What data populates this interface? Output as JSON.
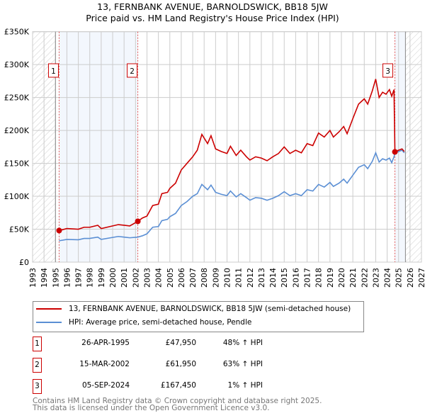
{
  "chart_data": {
    "type": "line",
    "title": "13, FERNBANK AVENUE, BARNOLDSWICK, BB18 5JW",
    "subtitle": "Price paid vs. HM Land Registry's House Price Index (HPI)",
    "xlim": [
      1993,
      2027
    ],
    "ylim": [
      0,
      350000
    ],
    "x_ticks": [
      "1993",
      "1994",
      "1995",
      "1996",
      "1997",
      "1998",
      "1999",
      "2000",
      "2001",
      "2002",
      "2003",
      "2004",
      "2005",
      "2006",
      "2007",
      "2008",
      "2009",
      "2010",
      "2011",
      "2012",
      "2013",
      "2014",
      "2015",
      "2016",
      "2017",
      "2018",
      "2019",
      "2020",
      "2021",
      "2022",
      "2023",
      "2024",
      "2025",
      "2026",
      "2027"
    ],
    "y_ticks": [
      {
        "v": 0,
        "label": "£0"
      },
      {
        "v": 50000,
        "label": "£50K"
      },
      {
        "v": 100000,
        "label": "£100K"
      },
      {
        "v": 150000,
        "label": "£150K"
      },
      {
        "v": 200000,
        "label": "£200K"
      },
      {
        "v": 250000,
        "label": "£250K"
      },
      {
        "v": 300000,
        "label": "£300K"
      },
      {
        "v": 350000,
        "label": "£350K"
      }
    ],
    "grid": true,
    "hatched_ranges": [
      [
        1993,
        1995
      ],
      [
        2025.6,
        2027
      ]
    ],
    "shaded_ranges": [
      [
        1995.32,
        2002.2
      ],
      [
        2024.68,
        2025.6
      ]
    ],
    "series": [
      {
        "name": "13, FERNBANK AVENUE, BARNOLDSWICK, BB18 5JW (semi-detached house)",
        "color": "#cc0000",
        "x": [
          1995.32,
          1996,
          1997,
          1997.5,
          1998,
          1998.7,
          1999,
          2000,
          2000.5,
          2001,
          2001.5,
          2002.2,
          2002.6,
          2003,
          2003.5,
          2004,
          2004.3,
          2004.8,
          2005,
          2005.5,
          2006,
          2006.5,
          2007,
          2007.4,
          2007.8,
          2008.3,
          2008.6,
          2009,
          2009.5,
          2010,
          2010.3,
          2010.8,
          2011.2,
          2011.7,
          2012,
          2012.5,
          2013,
          2013.5,
          2014,
          2014.5,
          2015,
          2015.5,
          2016,
          2016.5,
          2017,
          2017.5,
          2018,
          2018.5,
          2019,
          2019.3,
          2019.8,
          2020.2,
          2020.5,
          2021,
          2021.5,
          2022,
          2022.3,
          2022.7,
          2023,
          2023.3,
          2023.6,
          2023.9,
          2024.2,
          2024.4,
          2024.6,
          2024.68,
          2025,
          2025.3,
          2025.5
        ],
        "y": [
          47950,
          51000,
          50000,
          53000,
          53000,
          56000,
          51000,
          55000,
          57000,
          56000,
          55000,
          61950,
          67000,
          70000,
          86000,
          88000,
          104000,
          106000,
          112000,
          120000,
          140000,
          150000,
          160000,
          170000,
          194000,
          180000,
          192000,
          172000,
          168000,
          165000,
          176000,
          162000,
          170000,
          160000,
          155000,
          160000,
          158000,
          154000,
          160000,
          165000,
          175000,
          165000,
          170000,
          166000,
          180000,
          177000,
          196000,
          190000,
          200000,
          190000,
          198000,
          206000,
          195000,
          218000,
          240000,
          248000,
          240000,
          260000,
          278000,
          250000,
          258000,
          255000,
          262000,
          252000,
          262000,
          167450,
          170000,
          172000,
          168000
        ]
      },
      {
        "name": "HPI: Average price, semi-detached house, Pendle",
        "color": "#5b8fd4",
        "x": [
          1995.32,
          1996,
          1997,
          1997.5,
          1998,
          1998.7,
          1999,
          2000,
          2000.5,
          2001,
          2001.5,
          2002.2,
          2002.6,
          2003,
          2003.5,
          2004,
          2004.3,
          2004.8,
          2005,
          2005.5,
          2006,
          2006.5,
          2007,
          2007.4,
          2007.8,
          2008.3,
          2008.6,
          2009,
          2009.5,
          2010,
          2010.3,
          2010.8,
          2011.2,
          2011.7,
          2012,
          2012.5,
          2013,
          2013.5,
          2014,
          2014.5,
          2015,
          2015.5,
          2016,
          2016.5,
          2017,
          2017.5,
          2018,
          2018.5,
          2019,
          2019.3,
          2019.8,
          2020.2,
          2020.5,
          2021,
          2021.5,
          2022,
          2022.3,
          2022.7,
          2023,
          2023.3,
          2023.6,
          2023.9,
          2024.2,
          2024.4,
          2024.6,
          2024.68,
          2025,
          2025.3,
          2025.5
        ],
        "y": [
          32400,
          34500,
          34000,
          36000,
          36000,
          38000,
          34500,
          37500,
          39000,
          38000,
          37000,
          38000,
          40000,
          43000,
          53000,
          54000,
          63000,
          65000,
          69000,
          74000,
          86000,
          92000,
          100000,
          104000,
          118000,
          110000,
          117000,
          106000,
          103000,
          101000,
          108000,
          99000,
          104000,
          98000,
          94000,
          98000,
          97000,
          94000,
          97000,
          101000,
          107000,
          101000,
          104000,
          101000,
          110000,
          108000,
          118000,
          114000,
          121000,
          115000,
          120000,
          126000,
          120000,
          132000,
          144000,
          148000,
          142000,
          153000,
          166000,
          152000,
          157000,
          155000,
          158000,
          151000,
          160000,
          165600,
          168000,
          170000,
          166000
        ]
      }
    ]
  },
  "header": {
    "title": "13, FERNBANK AVENUE, BARNOLDSWICK, BB18 5JW",
    "subtitle": "Price paid vs. HM Land Registry's House Price Index (HPI)"
  },
  "markers": [
    {
      "label": "1",
      "x": 1995.32,
      "y": 47950
    },
    {
      "label": "2",
      "x": 2002.2,
      "y": 61950
    },
    {
      "label": "3",
      "x": 2024.68,
      "y": 167450
    }
  ],
  "legend": {
    "items": [
      {
        "label": "13, FERNBANK AVENUE, BARNOLDSWICK, BB18 5JW (semi-detached house)",
        "color": "#cc0000"
      },
      {
        "label": "HPI: Average price, semi-detached house, Pendle",
        "color": "#5b8fd4"
      }
    ]
  },
  "transactions": [
    {
      "num": "1",
      "date": "26-APR-1995",
      "price": "£47,950",
      "hpi": "48% ↑ HPI"
    },
    {
      "num": "2",
      "date": "15-MAR-2002",
      "price": "£61,950",
      "hpi": "63% ↑ HPI"
    },
    {
      "num": "3",
      "date": "05-SEP-2024",
      "price": "£167,450",
      "hpi": "1% ↑ HPI"
    }
  ],
  "footer": {
    "line1": "Contains HM Land Registry data © Crown copyright and database right 2025.",
    "line2": "This data is licensed under the Open Government Licence v3.0."
  }
}
